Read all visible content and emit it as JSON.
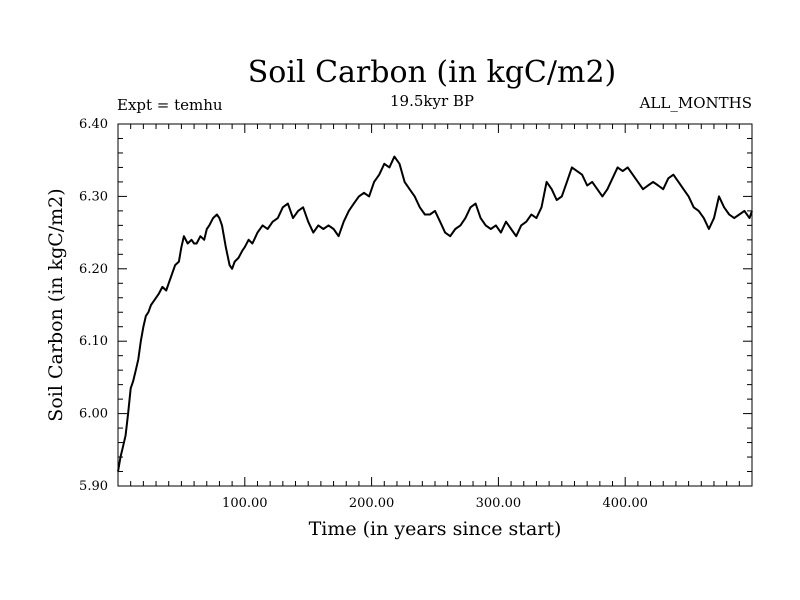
{
  "chart_data": {
    "type": "line",
    "title": "Soil Carbon (in kgC/m2)",
    "subtitle_left": "Expt = temhu",
    "subtitle_center": "19.5kyr BP",
    "subtitle_right": "ALL_MONTHS",
    "xlabel": "Time (in years since start)",
    "ylabel": "Soil Carbon (in kgC/m2)",
    "xlim": [
      0,
      500
    ],
    "ylim": [
      5.9,
      6.4
    ],
    "xticks": [
      100,
      200,
      300,
      400
    ],
    "xtick_labels": [
      "100.00",
      "200.00",
      "300.00",
      "400.00"
    ],
    "yticks": [
      5.9,
      6.0,
      6.1,
      6.2,
      6.3,
      6.4
    ],
    "ytick_labels": [
      "5.90",
      "6.00",
      "6.10",
      "6.20",
      "6.30",
      "6.40"
    ],
    "grid": false,
    "series": [
      {
        "name": "Soil Carbon",
        "color": "#000000",
        "x": [
          0,
          2,
          4,
          6,
          8,
          10,
          12,
          14,
          16,
          18,
          20,
          22,
          24,
          26,
          28,
          30,
          32,
          35,
          38,
          40,
          42,
          45,
          48,
          50,
          52,
          55,
          58,
          60,
          62,
          65,
          68,
          70,
          72,
          75,
          78,
          80,
          82,
          85,
          88,
          90,
          92,
          95,
          98,
          100,
          103,
          106,
          110,
          114,
          118,
          122,
          126,
          130,
          134,
          138,
          142,
          146,
          150,
          154,
          158,
          162,
          166,
          170,
          174,
          178,
          182,
          186,
          190,
          194,
          198,
          202,
          206,
          210,
          214,
          218,
          222,
          226,
          230,
          234,
          238,
          242,
          246,
          250,
          254,
          258,
          262,
          266,
          270,
          274,
          278,
          282,
          286,
          290,
          294,
          298,
          302,
          306,
          310,
          314,
          318,
          322,
          326,
          330,
          334,
          338,
          342,
          346,
          350,
          354,
          358,
          362,
          366,
          370,
          374,
          378,
          382,
          386,
          390,
          394,
          398,
          402,
          406,
          410,
          414,
          418,
          422,
          426,
          430,
          434,
          438,
          442,
          446,
          450,
          454,
          458,
          462,
          466,
          470,
          474,
          478,
          482,
          486,
          490,
          494,
          498,
          500
        ],
        "y": [
          5.92,
          5.94,
          5.955,
          5.97,
          6.0,
          6.035,
          6.045,
          6.06,
          6.075,
          6.1,
          6.12,
          6.135,
          6.14,
          6.15,
          6.155,
          6.16,
          6.165,
          6.175,
          6.17,
          6.18,
          6.19,
          6.205,
          6.21,
          6.23,
          6.245,
          6.235,
          6.24,
          6.235,
          6.235,
          6.245,
          6.24,
          6.255,
          6.26,
          6.27,
          6.275,
          6.27,
          6.26,
          6.23,
          6.205,
          6.2,
          6.21,
          6.215,
          6.225,
          6.23,
          6.24,
          6.235,
          6.25,
          6.26,
          6.255,
          6.265,
          6.27,
          6.285,
          6.29,
          6.27,
          6.28,
          6.285,
          6.265,
          6.25,
          6.26,
          6.255,
          6.26,
          6.255,
          6.245,
          6.265,
          6.28,
          6.29,
          6.3,
          6.305,
          6.3,
          6.32,
          6.33,
          6.345,
          6.34,
          6.355,
          6.345,
          6.32,
          6.31,
          6.3,
          6.285,
          6.275,
          6.275,
          6.28,
          6.265,
          6.25,
          6.245,
          6.255,
          6.26,
          6.27,
          6.285,
          6.29,
          6.27,
          6.26,
          6.255,
          6.26,
          6.25,
          6.265,
          6.255,
          6.245,
          6.26,
          6.265,
          6.275,
          6.27,
          6.285,
          6.32,
          6.31,
          6.295,
          6.3,
          6.32,
          6.34,
          6.335,
          6.33,
          6.315,
          6.32,
          6.31,
          6.3,
          6.31,
          6.325,
          6.34,
          6.335,
          6.34,
          6.33,
          6.32,
          6.31,
          6.315,
          6.32,
          6.315,
          6.31,
          6.325,
          6.33,
          6.32,
          6.31,
          6.3,
          6.285,
          6.28,
          6.27,
          6.255,
          6.27,
          6.3,
          6.285,
          6.275,
          6.27,
          6.275,
          6.28,
          6.27,
          6.28
        ]
      }
    ]
  }
}
